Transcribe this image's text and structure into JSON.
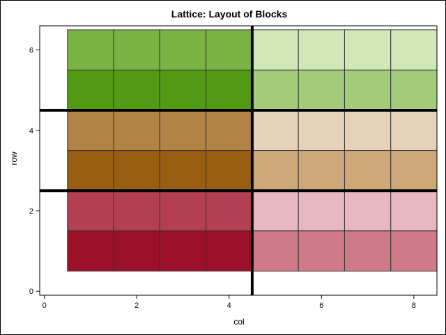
{
  "chart_data": {
    "type": "heatmap",
    "title": "Lattice: Layout of Blocks",
    "xlabel": "col",
    "ylabel": "row",
    "xlim": [
      -0.1,
      8.5
    ],
    "ylim": [
      -0.1,
      6.6
    ],
    "x_ticks": [
      0,
      2,
      4,
      6,
      8
    ],
    "y_ticks": [
      0,
      2,
      4,
      6
    ],
    "cells": [
      {
        "row": 6,
        "col": 1,
        "color": "#7bb244"
      },
      {
        "row": 6,
        "col": 2,
        "color": "#7bb244"
      },
      {
        "row": 6,
        "col": 3,
        "color": "#7bb244"
      },
      {
        "row": 6,
        "col": 4,
        "color": "#7bb244"
      },
      {
        "row": 6,
        "col": 5,
        "color": "#d0e7b8"
      },
      {
        "row": 6,
        "col": 6,
        "color": "#d0e7b8"
      },
      {
        "row": 6,
        "col": 7,
        "color": "#d0e7b8"
      },
      {
        "row": 6,
        "col": 8,
        "color": "#d0e7b8"
      },
      {
        "row": 5,
        "col": 1,
        "color": "#529a14"
      },
      {
        "row": 5,
        "col": 2,
        "color": "#529a14"
      },
      {
        "row": 5,
        "col": 3,
        "color": "#529a14"
      },
      {
        "row": 5,
        "col": 4,
        "color": "#529a14"
      },
      {
        "row": 5,
        "col": 5,
        "color": "#a3cc7a"
      },
      {
        "row": 5,
        "col": 6,
        "color": "#a3cc7a"
      },
      {
        "row": 5,
        "col": 7,
        "color": "#a3cc7a"
      },
      {
        "row": 5,
        "col": 8,
        "color": "#a3cc7a"
      },
      {
        "row": 4,
        "col": 1,
        "color": "#b38345"
      },
      {
        "row": 4,
        "col": 2,
        "color": "#b38345"
      },
      {
        "row": 4,
        "col": 3,
        "color": "#b38345"
      },
      {
        "row": 4,
        "col": 4,
        "color": "#b38345"
      },
      {
        "row": 4,
        "col": 5,
        "color": "#e6d2b8"
      },
      {
        "row": 4,
        "col": 6,
        "color": "#e6d2b8"
      },
      {
        "row": 4,
        "col": 7,
        "color": "#e6d2b8"
      },
      {
        "row": 4,
        "col": 8,
        "color": "#e6d2b8"
      },
      {
        "row": 3,
        "col": 1,
        "color": "#985e12"
      },
      {
        "row": 3,
        "col": 2,
        "color": "#985e12"
      },
      {
        "row": 3,
        "col": 3,
        "color": "#985e12"
      },
      {
        "row": 3,
        "col": 4,
        "color": "#985e12"
      },
      {
        "row": 3,
        "col": 5,
        "color": "#cda879"
      },
      {
        "row": 3,
        "col": 6,
        "color": "#cda879"
      },
      {
        "row": 3,
        "col": 7,
        "color": "#cda879"
      },
      {
        "row": 3,
        "col": 8,
        "color": "#cda879"
      },
      {
        "row": 2,
        "col": 1,
        "color": "#b43f53"
      },
      {
        "row": 2,
        "col": 2,
        "color": "#b43f53"
      },
      {
        "row": 2,
        "col": 3,
        "color": "#b43f53"
      },
      {
        "row": 2,
        "col": 4,
        "color": "#b43f53"
      },
      {
        "row": 2,
        "col": 5,
        "color": "#e7b8c2"
      },
      {
        "row": 2,
        "col": 6,
        "color": "#e7b8c2"
      },
      {
        "row": 2,
        "col": 7,
        "color": "#e7b8c2"
      },
      {
        "row": 2,
        "col": 8,
        "color": "#e7b8c2"
      },
      {
        "row": 1,
        "col": 1,
        "color": "#9a1128"
      },
      {
        "row": 1,
        "col": 2,
        "color": "#9a1128"
      },
      {
        "row": 1,
        "col": 3,
        "color": "#9a1128"
      },
      {
        "row": 1,
        "col": 4,
        "color": "#9a1128"
      },
      {
        "row": 1,
        "col": 5,
        "color": "#ce7a87"
      },
      {
        "row": 1,
        "col": 6,
        "color": "#ce7a87"
      },
      {
        "row": 1,
        "col": 7,
        "color": "#ce7a87"
      },
      {
        "row": 1,
        "col": 8,
        "color": "#ce7a87"
      }
    ],
    "reference_lines": {
      "vertical_x": [
        4.5
      ],
      "horizontal_y": [
        2.5,
        4.5
      ]
    },
    "grid": false,
    "legend": "none"
  }
}
